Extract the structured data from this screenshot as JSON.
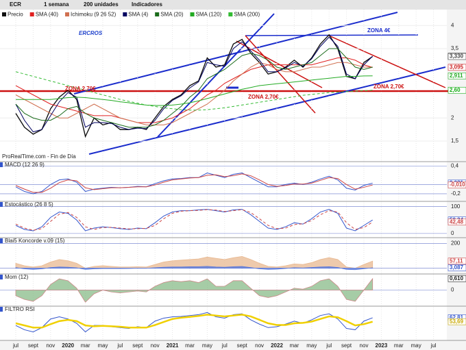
{
  "toolbar": {
    "symbol": "ECR",
    "period": "1 semana",
    "units": "200 unidades",
    "indicators": "Indicadores"
  },
  "chart_data": [
    {
      "type": "line",
      "title": "ERCROS",
      "footer": "ProRealTime.com - Fin de Día",
      "categories": [
        "jul",
        null,
        "sept",
        null,
        "nov",
        null,
        "2020",
        null,
        "mar",
        null,
        "may",
        null,
        "jul",
        null,
        "sept",
        null,
        "nov",
        null,
        "2021",
        null,
        "mar",
        null,
        "may",
        null,
        "jul",
        null,
        "sept",
        null,
        "nov",
        null,
        "2022",
        null,
        "mar",
        null,
        "may",
        null,
        "jul",
        null,
        "sept",
        null,
        "nov",
        null,
        "2023",
        null,
        "mar",
        null,
        "may",
        null,
        "jul"
      ],
      "ylim": [
        1.1,
        4.3
      ],
      "yticks": [
        4,
        {
          "value": 3.5,
          "label": "3,5"
        },
        2,
        {
          "value": 1.5,
          "label": "1,5"
        }
      ],
      "annotations": [
        "ZONA 4€",
        "ZONA 2,70€",
        "ZONA 2,70€",
        "ZONA 2,70€"
      ],
      "price_labels": [
        {
          "value": 3.335,
          "label": "3,335",
          "color": "#000000"
        },
        {
          "value": 3.33,
          "label": "3,330",
          "color": "#444444"
        },
        {
          "value": 3.095,
          "label": "3,095",
          "color": "#cc2222"
        },
        {
          "value": 2.911,
          "label": "2,911",
          "color": "#22aa22"
        },
        {
          "value": 2.6,
          "label": "2,60",
          "color": "#11aa11"
        }
      ],
      "series": [
        {
          "name": "Precio",
          "color": "#111111",
          "values": [
            2.1,
            1.8,
            1.65,
            1.75,
            2.2,
            2.45,
            2.6,
            2.4,
            1.6,
            2.0,
            1.85,
            1.9,
            1.75,
            1.75,
            1.8,
            1.75,
            2.0,
            2.25,
            2.4,
            2.5,
            2.7,
            2.8,
            3.3,
            3.1,
            3.15,
            3.6,
            3.7,
            3.4,
            3.2,
            2.95,
            3.0,
            3.1,
            3.25,
            3.1,
            3.3,
            3.6,
            3.8,
            3.5,
            2.9,
            2.85,
            3.2,
            3.33,
            null,
            null,
            null,
            null,
            null,
            null,
            null
          ]
        },
        {
          "name": "SMA (40)",
          "color": "#e02020",
          "values": [
            2.7,
            2.6,
            2.5,
            2.4,
            2.3,
            2.25,
            2.2,
            2.15,
            2.1,
            2.05,
            2.05,
            2.05,
            2.0,
            1.95,
            1.9,
            1.9,
            1.9,
            1.95,
            2.0,
            2.1,
            2.2,
            2.35,
            2.5,
            2.6,
            2.75,
            2.85,
            2.95,
            3.05,
            3.1,
            3.15,
            3.15,
            3.15,
            3.15,
            3.15,
            3.15,
            3.2,
            3.25,
            3.3,
            3.3,
            3.25,
            3.15,
            3.095,
            null,
            null,
            null,
            null,
            null,
            null,
            null
          ]
        },
        {
          "name": "Ichimoku (9 26 52)",
          "color": "#d07050",
          "values": [
            2.5,
            2.4,
            2.3,
            2.2,
            2.1,
            2.0,
            2.0,
            2.1,
            2.2,
            2.3,
            2.2,
            2.1,
            2.0,
            1.95,
            1.9,
            1.85,
            1.85,
            1.85,
            1.9,
            2.0,
            2.1,
            2.2,
            2.3,
            2.45,
            2.6,
            2.8,
            2.95,
            3.1,
            3.2,
            3.15,
            3.05,
            3.0,
            3.0,
            3.05,
            3.1,
            3.1,
            3.15,
            3.2,
            3.2,
            3.15,
            3.1,
            3.1,
            null,
            null,
            null,
            null,
            null,
            null,
            null
          ]
        },
        {
          "name": "SMA (4)",
          "color": "#000060",
          "values": [
            2.3,
            1.95,
            1.7,
            1.75,
            2.05,
            2.35,
            2.55,
            2.45,
            1.8,
            1.9,
            1.9,
            1.88,
            1.8,
            1.75,
            1.78,
            1.77,
            1.95,
            2.2,
            2.38,
            2.48,
            2.65,
            2.78,
            3.2,
            3.15,
            3.12,
            3.5,
            3.65,
            3.45,
            3.25,
            3.0,
            3.0,
            3.08,
            3.2,
            3.12,
            3.28,
            3.55,
            3.75,
            3.55,
            2.95,
            2.85,
            3.15,
            3.335,
            null,
            null,
            null,
            null,
            null,
            null,
            null
          ]
        },
        {
          "name": "SMA (20)",
          "color": "#1a6b1a",
          "values": [
            2.3,
            2.1,
            2.0,
            1.95,
            1.95,
            2.05,
            2.2,
            2.25,
            2.1,
            2.0,
            1.95,
            1.9,
            1.85,
            1.8,
            1.8,
            1.8,
            1.85,
            1.95,
            2.1,
            2.25,
            2.45,
            2.6,
            2.85,
            2.95,
            3.05,
            3.2,
            3.35,
            3.4,
            3.35,
            3.25,
            3.1,
            3.05,
            3.1,
            3.15,
            3.2,
            3.35,
            3.5,
            3.5,
            3.3,
            3.1,
            3.05,
            3.1,
            null,
            null,
            null,
            null,
            null,
            null,
            null
          ]
        },
        {
          "name": "SMA (120)",
          "color": "#22aa22",
          "values": [
            2.4,
            2.4,
            2.4,
            2.4,
            2.4,
            2.42,
            2.44,
            2.45,
            2.44,
            2.42,
            2.4,
            2.38,
            2.35,
            2.33,
            2.3,
            2.28,
            2.27,
            2.27,
            2.28,
            2.3,
            2.33,
            2.37,
            2.42,
            2.47,
            2.52,
            2.57,
            2.62,
            2.66,
            2.7,
            2.72,
            2.74,
            2.76,
            2.78,
            2.8,
            2.82,
            2.84,
            2.86,
            2.88,
            2.9,
            2.9,
            2.91,
            2.911,
            null,
            null,
            null,
            null,
            null,
            null,
            null
          ]
        },
        {
          "name": "SMA (200)",
          "color": "#33bb33",
          "dashed": true,
          "values": [
            3.0,
            2.95,
            2.9,
            2.85,
            2.8,
            2.75,
            2.7,
            2.65,
            2.6,
            2.55,
            2.5,
            2.45,
            2.4,
            2.36,
            2.32,
            2.28,
            2.25,
            2.22,
            2.2,
            2.18,
            2.17,
            2.17,
            2.18,
            2.2,
            2.22,
            2.25,
            2.28,
            2.31,
            2.34,
            2.37,
            2.4,
            2.43,
            2.46,
            2.49,
            2.51,
            2.53,
            2.55,
            2.56,
            2.57,
            2.58,
            2.59,
            2.6,
            null,
            null,
            null,
            null,
            null,
            null,
            null
          ]
        }
      ]
    },
    {
      "type": "line",
      "title": "MACD (12 26 9)",
      "ylim": [
        -0.32,
        0.45
      ],
      "yticks": [
        {
          "value": 0.4,
          "label": "0,4"
        },
        0,
        {
          "value": -0.2,
          "label": "-0,2"
        }
      ],
      "price_labels": [
        {
          "value": 0.031,
          "label": "0,031",
          "color": "#3355cc"
        },
        {
          "value": -0.01,
          "label": "-0,010",
          "color": "#cc4444"
        }
      ],
      "series": [
        {
          "color": "#3355cc",
          "values": [
            -0.05,
            -0.15,
            -0.2,
            -0.15,
            0.0,
            0.1,
            0.12,
            0.05,
            -0.15,
            -0.1,
            -0.08,
            -0.06,
            -0.07,
            -0.06,
            -0.04,
            -0.05,
            0.02,
            0.08,
            0.12,
            0.13,
            0.15,
            0.15,
            0.25,
            0.2,
            0.15,
            0.22,
            0.25,
            0.15,
            0.05,
            -0.05,
            -0.05,
            0.0,
            0.03,
            0.0,
            0.05,
            0.12,
            0.18,
            0.1,
            -0.08,
            -0.12,
            -0.02,
            0.031,
            null,
            null,
            null,
            null,
            null,
            null,
            null
          ]
        },
        {
          "color": "#cc4444",
          "values": [
            -0.02,
            -0.1,
            -0.17,
            -0.17,
            -0.08,
            0.04,
            0.1,
            0.08,
            -0.07,
            -0.11,
            -0.09,
            -0.07,
            -0.07,
            -0.06,
            -0.05,
            -0.05,
            -0.01,
            0.05,
            0.1,
            0.12,
            0.14,
            0.15,
            0.2,
            0.21,
            0.17,
            0.19,
            0.23,
            0.19,
            0.1,
            0.0,
            -0.04,
            -0.02,
            0.01,
            0.01,
            0.03,
            0.09,
            0.15,
            0.13,
            0.0,
            -0.1,
            -0.06,
            -0.01,
            null,
            null,
            null,
            null,
            null,
            null,
            null
          ]
        }
      ]
    },
    {
      "type": "line",
      "title": "Estocástico (26 8 5)",
      "ylim": [
        -8,
        112
      ],
      "yticks": [
        100,
        0
      ],
      "price_labels": [
        {
          "value": 50.24,
          "label": "50,24",
          "color": "#3355cc"
        },
        {
          "value": 42.48,
          "label": "42,48",
          "color": "#cc4444"
        }
      ],
      "series": [
        {
          "color": "#3355cc",
          "values": [
            30,
            15,
            10,
            25,
            60,
            80,
            75,
            50,
            10,
            20,
            25,
            22,
            18,
            15,
            20,
            18,
            40,
            65,
            80,
            85,
            85,
            88,
            90,
            85,
            80,
            88,
            90,
            70,
            45,
            20,
            15,
            25,
            40,
            35,
            55,
            80,
            90,
            75,
            20,
            10,
            30,
            50.24,
            null,
            null,
            null,
            null,
            null,
            null,
            null
          ]
        },
        {
          "color": "#cc4444",
          "dashed": true,
          "values": [
            35,
            20,
            12,
            18,
            45,
            72,
            78,
            60,
            25,
            15,
            22,
            23,
            20,
            17,
            18,
            19,
            30,
            55,
            75,
            83,
            85,
            86,
            89,
            87,
            82,
            85,
            89,
            78,
            55,
            30,
            18,
            20,
            33,
            36,
            48,
            70,
            85,
            80,
            40,
            15,
            22,
            42.48,
            null,
            null,
            null,
            null,
            null,
            null,
            null
          ]
        }
      ]
    },
    {
      "type": "area",
      "title": "Blai5 Koncorde v.09 (15)",
      "ylim": [
        -30,
        230
      ],
      "yticks": [
        200,
        0
      ],
      "price_labels": [
        {
          "value": 57.11,
          "label": "57,11",
          "color": "#cc4444"
        },
        {
          "value": 3.087,
          "label": "3,087",
          "color": "#3355cc"
        }
      ],
      "series": [
        {
          "color": "#e8b890",
          "values": [
            40,
            20,
            10,
            20,
            50,
            70,
            60,
            40,
            0,
            15,
            20,
            15,
            10,
            10,
            12,
            10,
            30,
            50,
            60,
            65,
            70,
            75,
            90,
            80,
            70,
            85,
            95,
            70,
            40,
            15,
            10,
            20,
            35,
            30,
            45,
            70,
            85,
            70,
            10,
            0,
            30,
            57.11,
            null,
            null,
            null,
            null,
            null,
            null,
            null
          ]
        },
        {
          "color": "#5577dd",
          "values": [
            5,
            -5,
            -10,
            -5,
            5,
            10,
            8,
            3,
            -10,
            -5,
            -3,
            -2,
            -3,
            -2,
            0,
            -1,
            4,
            8,
            10,
            10,
            12,
            12,
            15,
            10,
            8,
            12,
            14,
            5,
            -5,
            -10,
            -8,
            -2,
            4,
            2,
            6,
            10,
            12,
            6,
            -10,
            -12,
            -4,
            3.087,
            null,
            null,
            null,
            null,
            null,
            null,
            null
          ]
        }
      ]
    },
    {
      "type": "area",
      "title": "Mom (12)",
      "ylim": [
        -0.75,
        0.75
      ],
      "yticks": [
        0
      ],
      "price_labels": [
        {
          "value": 0.61,
          "label": "0,610",
          "color": "#222222"
        }
      ],
      "series": [
        {
          "color": "#88bb88",
          "negative_color": "#cc8888",
          "values": [
            -0.3,
            -0.5,
            -0.6,
            -0.3,
            0.3,
            0.6,
            0.5,
            0.1,
            -0.65,
            -0.2,
            0.0,
            -0.1,
            -0.15,
            -0.1,
            -0.05,
            -0.1,
            0.2,
            0.4,
            0.5,
            0.45,
            0.5,
            0.4,
            0.6,
            0.2,
            0.2,
            0.5,
            0.5,
            0.1,
            -0.3,
            -0.4,
            -0.3,
            -0.1,
            0.1,
            0.05,
            0.2,
            0.5,
            0.6,
            0.2,
            -0.5,
            -0.6,
            0.0,
            0.61,
            null,
            null,
            null,
            null,
            null,
            null,
            null
          ]
        }
      ]
    },
    {
      "type": "line",
      "title": "FILTRO RSI",
      "ylim": [
        15,
        85
      ],
      "yticks": [],
      "price_labels": [
        {
          "value": 62.81,
          "label": "62,81",
          "color": "#3355cc"
        },
        {
          "value": 53.69,
          "label": "53,69",
          "color": "#c8a800"
        }
      ],
      "series": [
        {
          "color": "#3355cc",
          "values": [
            45,
            35,
            30,
            40,
            60,
            65,
            60,
            50,
            30,
            45,
            45,
            42,
            40,
            38,
            42,
            40,
            55,
            62,
            65,
            66,
            68,
            70,
            75,
            65,
            62,
            70,
            72,
            58,
            48,
            40,
            42,
            48,
            55,
            50,
            58,
            68,
            72,
            60,
            38,
            35,
            55,
            62.81,
            null,
            null,
            null,
            null,
            null,
            null,
            null
          ]
        },
        {
          "color": "#f0d000",
          "width": 2.5,
          "values": [
            50,
            45,
            40,
            40,
            48,
            55,
            58,
            55,
            45,
            43,
            44,
            43,
            42,
            40,
            40,
            40,
            46,
            53,
            60,
            63,
            65,
            67,
            70,
            68,
            66,
            68,
            70,
            66,
            58,
            50,
            46,
            46,
            50,
            51,
            54,
            60,
            66,
            64,
            55,
            45,
            48,
            53.69,
            null,
            null,
            null,
            null,
            null,
            null,
            null
          ]
        }
      ]
    }
  ]
}
